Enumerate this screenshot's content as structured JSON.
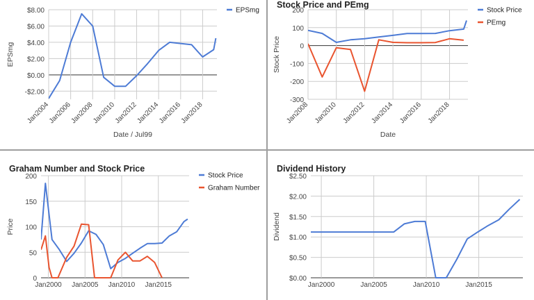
{
  "chart_data": [
    {
      "type": "line",
      "title": "",
      "xlabel": "Date / Jul99",
      "ylabel": "EPSmg",
      "ylim": [
        -3,
        8
      ],
      "xlim": [
        2004,
        2019.3
      ],
      "x_ticks": [
        2004,
        2006,
        2008,
        2010,
        2012,
        2014,
        2016,
        2018
      ],
      "x_tick_labels": [
        "Jan2004",
        "Jan2006",
        "Jan2008",
        "Jan2010",
        "Jan2012",
        "Jan2014",
        "Jan2016",
        "Jan2018"
      ],
      "y_ticks": [
        -2,
        0,
        2,
        4,
        6,
        8
      ],
      "y_tick_labels": [
        "-$2.00",
        "$0.00",
        "$2.00",
        "$4.00",
        "$6.00",
        "$8.00"
      ],
      "series": [
        {
          "name": "EPSmg",
          "color": "#4d7bd5",
          "x": [
            2004,
            2005,
            2006,
            2007,
            2008,
            2009,
            2010,
            2011,
            2012,
            2013,
            2014,
            2015,
            2017,
            2018,
            2019,
            2019.2
          ],
          "values": [
            -2.9,
            -0.7,
            4.0,
            7.5,
            6.0,
            -0.3,
            -1.4,
            -1.4,
            -0.1,
            1.4,
            3.0,
            4.0,
            3.7,
            2.2,
            3.1,
            4.5
          ]
        }
      ]
    },
    {
      "type": "line",
      "title": "Stock Price and PEmg",
      "xlabel": "Date",
      "ylabel": "Stock Price",
      "ylim": [
        -300,
        200
      ],
      "xlim": [
        2008,
        2019.3
      ],
      "x_ticks": [
        2008,
        2010,
        2012,
        2014,
        2016,
        2018
      ],
      "x_tick_labels": [
        "Jan2008",
        "Jan2010",
        "Jan2012",
        "Jan2014",
        "Jan2016",
        "Jan2018"
      ],
      "y_ticks": [
        -300,
        -200,
        -100,
        0,
        100,
        200
      ],
      "y_tick_labels": [
        "-300",
        "-200",
        "-100",
        "0",
        "100",
        "200"
      ],
      "series": [
        {
          "name": "Stock Price",
          "color": "#4d7bd5",
          "x": [
            2008,
            2009,
            2010,
            2011,
            2012,
            2013,
            2014,
            2015,
            2016,
            2017,
            2018,
            2019,
            2019.2
          ],
          "values": [
            85,
            68,
            18,
            32,
            38,
            48,
            57,
            67,
            67,
            68,
            83,
            92,
            140
          ]
        },
        {
          "name": "PEmg",
          "color": "#e9542f",
          "x": [
            2008,
            2009,
            2010,
            2011,
            2012,
            2013,
            2014,
            2015,
            2016,
            2017,
            2018,
            2019
          ],
          "values": [
            10,
            -175,
            -12,
            -22,
            -255,
            32,
            18,
            16,
            16,
            17,
            38,
            30
          ]
        }
      ]
    },
    {
      "type": "line",
      "title": "Graham Number and Stock Price",
      "xlabel": "",
      "ylabel": "Price",
      "ylim": [
        0,
        200
      ],
      "xlim": [
        1999,
        2019.2
      ],
      "x_ticks": [
        2000,
        2005,
        2010,
        2015
      ],
      "x_tick_labels": [
        "Jan2000",
        "Jan2005",
        "Jan2010",
        "Jan2015"
      ],
      "y_ticks": [
        0,
        50,
        100,
        150,
        200
      ],
      "y_tick_labels": [
        "0",
        "50",
        "100",
        "150",
        "200"
      ],
      "series": [
        {
          "name": "Stock Price",
          "color": "#4d7bd5",
          "x": [
            1999,
            1999.6,
            2000.5,
            2001.5,
            2002.5,
            2003.5,
            2004.5,
            2005.5,
            2006.5,
            2007.5,
            2008.5,
            2009.5,
            2010.5,
            2011.5,
            2012.5,
            2013.5,
            2014.5,
            2015.5,
            2016.5,
            2017.5,
            2018.5,
            2019
          ],
          "values": [
            75,
            185,
            75,
            55,
            32,
            48,
            68,
            92,
            85,
            65,
            18,
            30,
            38,
            48,
            58,
            67,
            67,
            68,
            82,
            90,
            110,
            115
          ]
        },
        {
          "name": "Graham Number",
          "color": "#e9542f",
          "x": [
            1999,
            1999.6,
            2000.1,
            2000.5,
            2001.3,
            2002.5,
            2003.5,
            2004.5,
            2005.5,
            2006.3,
            2007.3,
            2008.5,
            2009.5,
            2010.5,
            2011.5,
            2012.5,
            2013.5,
            2014.5,
            2015.5
          ],
          "values": [
            55,
            82,
            20,
            0,
            0,
            40,
            62,
            105,
            104,
            0,
            0,
            0,
            35,
            50,
            33,
            33,
            42,
            30,
            0
          ]
        }
      ]
    },
    {
      "type": "line",
      "title": "Dividend History",
      "xlabel": "",
      "ylabel": "Dividend",
      "ylim": [
        0,
        2.5
      ],
      "xlim": [
        1999,
        2019.2
      ],
      "x_ticks": [
        2000,
        2005,
        2010,
        2015
      ],
      "x_tick_labels": [
        "Jan2000",
        "Jan2005",
        "Jan2010",
        "Jan2015"
      ],
      "y_ticks": [
        0,
        0.5,
        1,
        1.5,
        2,
        2.5
      ],
      "y_tick_labels": [
        "$0.00",
        "$0.50",
        "$1.00",
        "$1.50",
        "$2.00",
        "$2.50"
      ],
      "series": [
        {
          "name": "Dividend",
          "color": "#4d7bd5",
          "x": [
            1999,
            2006.9,
            2007.9,
            2008.9,
            2009.9,
            2010.9,
            2011.9,
            2012.9,
            2013.9,
            2014.9,
            2015.9,
            2016.9,
            2017.9,
            2018.9
          ],
          "values": [
            1.12,
            1.12,
            1.32,
            1.38,
            1.38,
            0.0,
            0.0,
            0.45,
            0.95,
            1.12,
            1.28,
            1.42,
            1.68,
            1.92
          ]
        }
      ]
    }
  ]
}
